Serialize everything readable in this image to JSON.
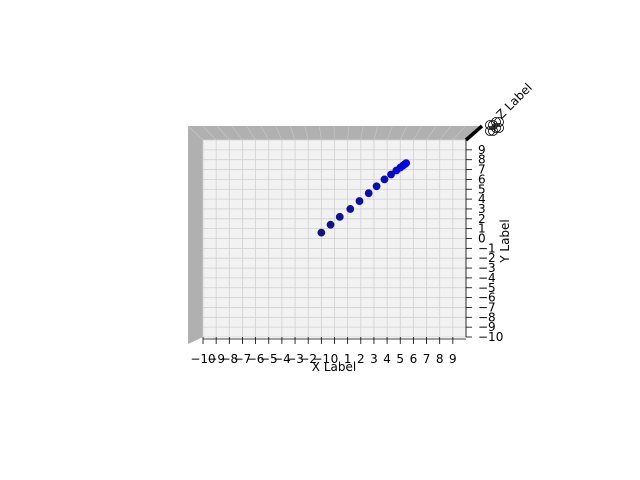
{
  "chart_data": {
    "type": "scatter",
    "view": "3d-projected",
    "xlabel": "X Label",
    "ylabel": "Y Label",
    "zlabel": "Z Label",
    "xlim": [
      -10,
      10
    ],
    "ylim": [
      -10,
      10
    ],
    "x_ticks": [
      "−10",
      "−9",
      "−8",
      "−7",
      "−6",
      "−5",
      "−4",
      "−3",
      "−2",
      "−1",
      "0",
      "1",
      "2",
      "3",
      "4",
      "5",
      "6",
      "7",
      "8",
      "9"
    ],
    "y_ticks": [
      "−10",
      "−9",
      "−8",
      "−7",
      "−6",
      "−5",
      "−4",
      "−3",
      "−2",
      "−1",
      "0",
      "1",
      "2",
      "3",
      "4",
      "5",
      "6",
      "7",
      "8",
      "9"
    ],
    "grid": true,
    "series": [
      {
        "color": "#0000cc",
        "points": [
          {
            "x": -1.0,
            "y": 0.6
          },
          {
            "x": -0.3,
            "y": 1.4
          },
          {
            "x": 0.4,
            "y": 2.2
          },
          {
            "x": 1.2,
            "y": 3.0
          },
          {
            "x": 1.9,
            "y": 3.8
          },
          {
            "x": 2.6,
            "y": 4.6
          },
          {
            "x": 3.2,
            "y": 5.3
          },
          {
            "x": 3.8,
            "y": 6.0
          },
          {
            "x": 4.3,
            "y": 6.5
          },
          {
            "x": 4.7,
            "y": 6.9
          },
          {
            "x": 5.0,
            "y": 7.2
          },
          {
            "x": 5.2,
            "y": 7.4
          },
          {
            "x": 5.35,
            "y": 7.55
          },
          {
            "x": 5.45,
            "y": 7.65
          }
        ]
      }
    ]
  }
}
